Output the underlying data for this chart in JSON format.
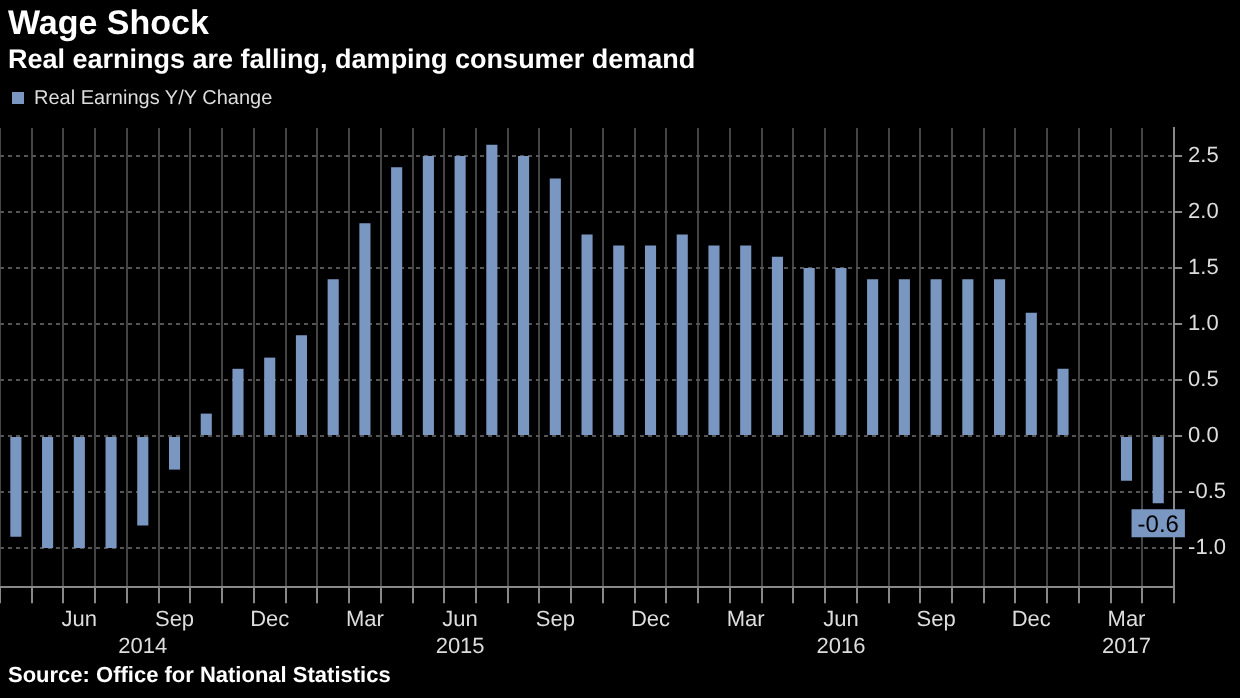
{
  "chart_data": {
    "type": "bar",
    "title": "Wage Shock",
    "subtitle": "Real earnings are falling, damping consumer demand",
    "categories": [
      null,
      null,
      "Jun",
      null,
      "\n2014",
      "Sep",
      null,
      null,
      "Dec",
      null,
      null,
      "Mar",
      null,
      null,
      "Jun\n2015",
      null,
      null,
      "Sep",
      null,
      null,
      "Dec",
      null,
      null,
      "Mar",
      null,
      null,
      "Jun\n2016",
      null,
      null,
      "Sep",
      null,
      null,
      "Dec",
      null,
      null,
      "Mar\n2017",
      null
    ],
    "series": [
      {
        "name": "Real Earnings Y/Y Change",
        "color": "#7a97c2",
        "values": [
          -0.9,
          -1.0,
          -1.0,
          -1.0,
          -0.8,
          -0.3,
          0.2,
          0.6,
          0.7,
          0.9,
          1.4,
          1.9,
          2.4,
          2.5,
          2.5,
          2.6,
          2.5,
          2.3,
          1.8,
          1.7,
          1.7,
          1.8,
          1.7,
          1.7,
          1.6,
          1.5,
          1.5,
          1.4,
          1.4,
          1.4,
          1.4,
          1.4,
          1.1,
          0.6,
          0.0,
          -0.4,
          -0.6
        ],
        "value_labels": [
          null,
          null,
          null,
          null,
          null,
          null,
          null,
          null,
          null,
          null,
          null,
          null,
          null,
          null,
          null,
          null,
          null,
          null,
          null,
          null,
          null,
          null,
          null,
          null,
          null,
          null,
          null,
          null,
          null,
          null,
          null,
          null,
          null,
          null,
          null,
          null,
          "-0.6"
        ]
      }
    ],
    "ylim": [
      -1.35,
      2.75
    ],
    "yticks": [
      {
        "value": -1,
        "label": "-1.0"
      },
      {
        "value": -0.5,
        "label": "-0.5"
      },
      {
        "value": 0,
        "label": "0.0"
      },
      {
        "value": 0.5,
        "label": "0.5"
      },
      {
        "value": 1,
        "label": "1.0"
      },
      {
        "value": 1.5,
        "label": "1.5"
      },
      {
        "value": 2,
        "label": "2.0"
      },
      {
        "value": 2.5,
        "label": "2.5"
      }
    ],
    "grid": true,
    "legend": "top left",
    "annotations": [
      "Source: Office for National Statistics"
    ]
  }
}
